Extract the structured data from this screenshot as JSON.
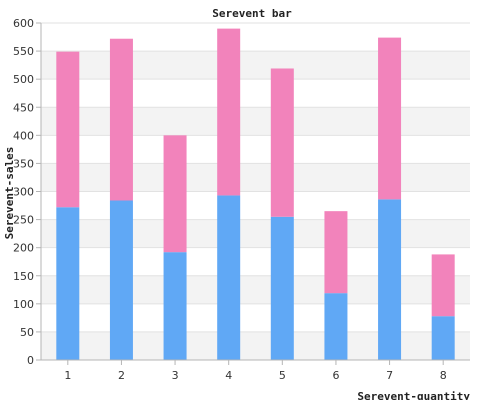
{
  "chart_data": {
    "type": "bar",
    "stacked": true,
    "title": "Serevent bar",
    "xlabel": "Serevent-quantity",
    "ylabel": "Serevent-sales",
    "categories": [
      "1",
      "2",
      "3",
      "4",
      "5",
      "6",
      "7",
      "8"
    ],
    "series": [
      {
        "values": [
          272,
          284,
          192,
          293,
          255,
          119,
          286,
          78
        ],
        "color": "#60a8f5"
      },
      {
        "values": [
          277,
          288,
          208,
          297,
          264,
          146,
          288,
          110
        ],
        "color": "#f283bb"
      }
    ],
    "ylim": [
      0,
      600
    ],
    "yticks": [
      0,
      50,
      100,
      150,
      200,
      250,
      300,
      350,
      400,
      450,
      500,
      550,
      600
    ],
    "grid": true,
    "band_colors": [
      "#f3f3f3",
      "#ffffff"
    ],
    "gridline_color": "#e2e2e2",
    "axis_color": "#b5b5b5"
  }
}
